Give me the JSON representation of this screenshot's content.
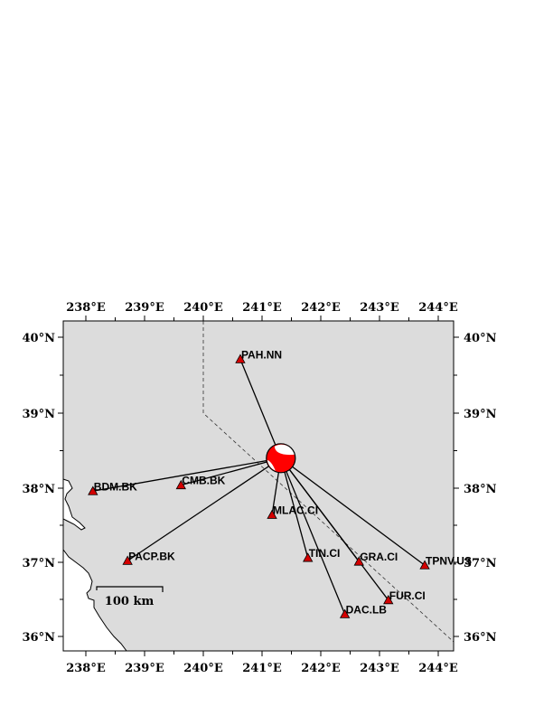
{
  "map": {
    "region": {
      "lon": [
        237.62,
        244.26
      ],
      "lat": [
        35.8,
        40.22
      ]
    },
    "land_color": "#dcdcdc",
    "water_color": "#ffffff",
    "station_color": "#d40000",
    "beachball_color": "#ff0000",
    "lon_ticks": [
      {
        "value": 238,
        "label": "238°E"
      },
      {
        "value": 239,
        "label": "239°E"
      },
      {
        "value": 240,
        "label": "240°E"
      },
      {
        "value": 241,
        "label": "241°E"
      },
      {
        "value": 242,
        "label": "242°E"
      },
      {
        "value": 243,
        "label": "243°E"
      },
      {
        "value": 244,
        "label": "244°E"
      }
    ],
    "lat_ticks": [
      {
        "value": 40,
        "label": "40°N"
      },
      {
        "value": 39,
        "label": "39°N"
      },
      {
        "value": 38,
        "label": "38°N"
      },
      {
        "value": 37,
        "label": "37°N"
      },
      {
        "value": 36,
        "label": "36°N"
      }
    ],
    "event": {
      "lon": 241.32,
      "lat": 38.4
    },
    "stations": [
      {
        "name": "PAH.NN",
        "lon": 240.63,
        "lat": 39.71
      },
      {
        "name": "BDM.BK",
        "lon": 238.12,
        "lat": 37.96
      },
      {
        "name": "CMB.BK",
        "lon": 239.62,
        "lat": 38.04
      },
      {
        "name": "MLAC.CI",
        "lon": 241.17,
        "lat": 37.64
      },
      {
        "name": "PACP.BK",
        "lon": 238.71,
        "lat": 37.02
      },
      {
        "name": "TIN.CI",
        "lon": 241.78,
        "lat": 37.06
      },
      {
        "name": "GRA.CI",
        "lon": 242.65,
        "lat": 37.01
      },
      {
        "name": "TPNV.US",
        "lon": 243.77,
        "lat": 36.96
      },
      {
        "name": "FUR.CI",
        "lon": 243.15,
        "lat": 36.49
      },
      {
        "name": "DAC.LB",
        "lon": 242.41,
        "lat": 36.3
      }
    ],
    "scale_bar": {
      "label": "100 km"
    }
  }
}
